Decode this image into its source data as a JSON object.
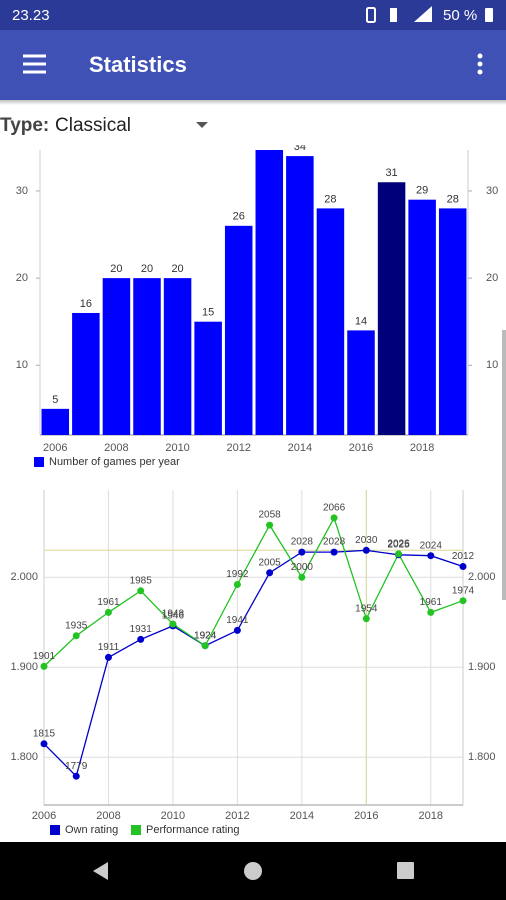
{
  "status_bar": {
    "time": "23.23",
    "battery": "50 %"
  },
  "app_bar": {
    "title": "Statistics"
  },
  "filter": {
    "label": "Type:",
    "value": "Classical"
  },
  "chart_data": [
    {
      "type": "bar",
      "categories": [
        "2006",
        null,
        "2008",
        null,
        "2010",
        null,
        "2012",
        null,
        "2014",
        null,
        "2016",
        null,
        "2018",
        null
      ],
      "series": [
        {
          "name": "Number of games per year",
          "color": "#0000ff",
          "colors": [
            "#0000ff",
            "#0000ff",
            "#0000ff",
            "#0000ff",
            "#0000ff",
            "#0000ff",
            "#0000ff",
            "#0000ff",
            "#0000ff",
            "#0000ff",
            "#0000ff",
            "#00007a",
            "#0000ff",
            "#0000ff"
          ],
          "values": [
            5,
            16,
            20,
            20,
            20,
            15,
            26,
            35,
            34,
            28,
            14,
            31,
            29,
            28
          ]
        }
      ],
      "ylim": [
        2,
        34.7
      ],
      "yticks": [
        10,
        20,
        30
      ],
      "grid": false
    },
    {
      "type": "line",
      "x": [
        2006,
        2007,
        2008,
        2009,
        2010,
        2011,
        2012,
        2013,
        2014,
        2015,
        2016,
        2017,
        2018,
        2019
      ],
      "series": [
        {
          "name": "Own rating",
          "color": "#0000cc",
          "values": [
            1815,
            1779,
            1911,
            1931,
            1946,
            1924,
            1941,
            2005,
            2028,
            2028,
            2030,
            2025,
            2024,
            2012
          ]
        },
        {
          "name": "Performance rating",
          "color": "#22c322",
          "values": [
            1901,
            1935,
            1961,
            1985,
            1948,
            1924,
            1992,
            2058,
            2000,
            2066,
            1954,
            2026,
            1961,
            1974
          ]
        }
      ],
      "xlim": [
        2006,
        2019
      ],
      "xticks": [
        2006,
        2008,
        2010,
        2012,
        2014,
        2016,
        2018
      ],
      "ylim": [
        1747,
        2097
      ],
      "yticks": [
        {
          "value": 1800,
          "label": "1.800"
        },
        {
          "value": 1900,
          "label": "1.900"
        },
        {
          "value": 2000,
          "label": "2.000"
        }
      ],
      "grid": true
    }
  ]
}
